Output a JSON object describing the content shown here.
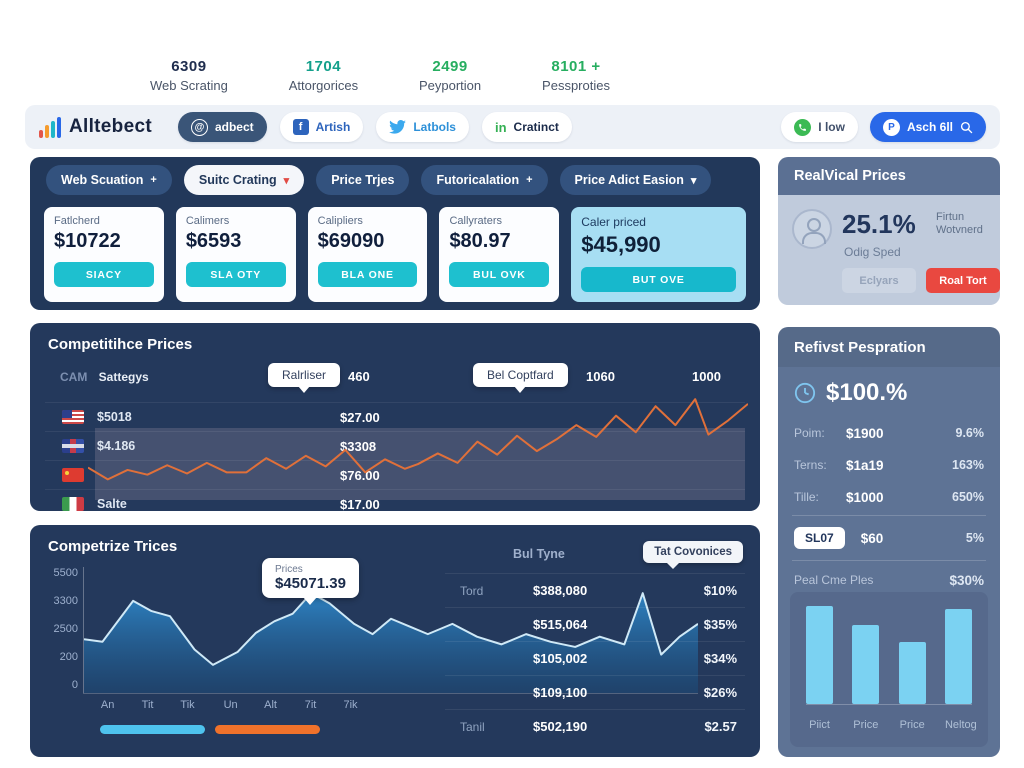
{
  "stats": [
    {
      "value": "6309",
      "label": "Web Scrating",
      "color": "#1f2d4e"
    },
    {
      "value": "1704",
      "label": "Attorgorices",
      "color": "#14a08b"
    },
    {
      "value": "2499",
      "label": "Peyportion",
      "color": "#27ae60"
    },
    {
      "value": "8101 +",
      "label": "Pessproties",
      "color": "#27ae60"
    }
  ],
  "header": {
    "brand": "Alltebect",
    "social": [
      {
        "label": "adbect",
        "icon": "at-circle"
      },
      {
        "label": "Artish",
        "icon": "facebook"
      },
      {
        "label": "Latbols",
        "icon": "twitter"
      },
      {
        "label": "Cratinct",
        "icon": "linkedin"
      }
    ],
    "actions": [
      {
        "label": "I low",
        "icon": "phone"
      },
      {
        "label": "Asch 6ll",
        "icon": "p-circle"
      }
    ]
  },
  "nav": [
    {
      "label": "Web Scuation",
      "caret": "+"
    },
    {
      "label": "Suitc Crating",
      "caret": "▾"
    },
    {
      "label": "Price Trjes",
      "caret": ""
    },
    {
      "label": "Futoricalation",
      "caret": "+"
    },
    {
      "label": "Price Adict Easion",
      "caret": "▾"
    }
  ],
  "cards": [
    {
      "label": "Fatlcherd",
      "price": "$10722",
      "button": "SIACY"
    },
    {
      "label": "Calimers",
      "price": "$6593",
      "button": "SLA OTY"
    },
    {
      "label": "Calipliers",
      "price": "$69090",
      "button": "BLA ONE"
    },
    {
      "label": "Callyraters",
      "price": "$80.97",
      "button": "BUL OVK"
    },
    {
      "label": "Caler priced",
      "price": "$45,990",
      "button": "BUT OVE"
    }
  ],
  "line_panel": {
    "title": "Competitihce Prices",
    "tag1": "CAM",
    "tag2": "Sattegys",
    "tooltip1": "Ralrliser",
    "tooltip2": "Bel Coptfard",
    "label1": "460",
    "label2": "1060",
    "label3": "1000",
    "rows": [
      {
        "flag": "us",
        "label": "$5018",
        "price": "$27.00"
      },
      {
        "flag": "uk",
        "label": "$4.186",
        "price": "$3308"
      },
      {
        "flag": "cn",
        "label": "",
        "price": "$76.00"
      },
      {
        "flag": "it",
        "label": "Salte",
        "price": "$17.00"
      }
    ]
  },
  "area_panel": {
    "title": "Competrize Trices",
    "tooltip_label": "Prices",
    "tooltip_value": "$45071.39",
    "table_header": "Bul Tyne",
    "table_chip": "Tat Covonices",
    "table_rows": [
      {
        "label": "Tord",
        "value": "$388,080",
        "pct": "$10%"
      },
      {
        "label": "",
        "value": "$515,064",
        "pct": "$35%"
      },
      {
        "label": "",
        "value": "$105,002",
        "pct": "$34%"
      },
      {
        "label": "",
        "value": "$109,100",
        "pct": "$26%"
      },
      {
        "label": "Tanil",
        "value": "$502,190",
        "pct": "$2.57"
      }
    ]
  },
  "sidebar": {
    "panel1": {
      "title": "RealVical Prices",
      "percent": "25.1%",
      "note1": "Firtun",
      "note2": "Wotvnerd",
      "sub": "Odig Sped",
      "btn_secondary": "Eclyars",
      "btn_primary": "Roal Tort"
    },
    "panel2": {
      "title": "Refivst Pespration",
      "big": "$100.%",
      "rows": [
        {
          "label": "Poim:",
          "value": "$1900",
          "pct": "9.6%"
        },
        {
          "label": "Terns:",
          "value": "$1a19",
          "pct": "163%"
        },
        {
          "label": "Tille:",
          "value": "$1000",
          "pct": "650%"
        }
      ],
      "chip": "SL07",
      "chip_value": "$60",
      "chip_pct": "5%",
      "summary_label": "Peal Cme Ples",
      "summary_value": "$30%"
    }
  },
  "colors": {
    "accent_teal": "#1ec0cf",
    "accent_orange": "#f0722b",
    "accent_cyan": "#4ec3ee",
    "accent_red": "#e94840",
    "panel_navy": "#24395c",
    "bar_blue": "#7bd2f2",
    "action_blue": "#2968e8"
  },
  "chart_data": [
    {
      "type": "line",
      "title": "Competitihce Prices",
      "color": "#e0703a",
      "ylim": [
        0,
        100
      ],
      "top_labels": [
        "460",
        "1060",
        "1000"
      ],
      "points": [
        [
          0,
          30
        ],
        [
          3,
          20
        ],
        [
          6,
          28
        ],
        [
          9,
          24
        ],
        [
          12,
          32
        ],
        [
          15,
          25
        ],
        [
          18,
          34
        ],
        [
          21,
          26
        ],
        [
          24,
          26
        ],
        [
          27,
          38
        ],
        [
          30,
          29
        ],
        [
          33,
          40
        ],
        [
          36,
          31
        ],
        [
          39,
          45
        ],
        [
          42,
          26
        ],
        [
          45,
          37
        ],
        [
          48,
          29
        ],
        [
          50,
          33
        ],
        [
          53,
          42
        ],
        [
          56,
          34
        ],
        [
          59,
          52
        ],
        [
          62,
          41
        ],
        [
          65,
          57
        ],
        [
          68,
          44
        ],
        [
          71,
          54
        ],
        [
          74,
          66
        ],
        [
          77,
          56
        ],
        [
          80,
          74
        ],
        [
          83,
          60
        ],
        [
          86,
          82
        ],
        [
          89,
          66
        ],
        [
          92,
          88
        ],
        [
          94,
          58
        ],
        [
          97,
          70
        ],
        [
          100,
          84
        ]
      ]
    },
    {
      "type": "area",
      "title": "Competrize Trices",
      "y_ticks": [
        "5500",
        "3300",
        "2500",
        "200",
        "0"
      ],
      "x_ticks": [
        "An",
        "Tit",
        "Tik",
        "Un",
        "Alt",
        "7it",
        "7ik"
      ],
      "x_tick_pos": [
        4,
        10.5,
        17,
        24,
        30.5,
        37,
        43.5
      ],
      "line_color": "#cfe9f7",
      "fill_color": "#2e86c8",
      "tooltip": {
        "label": "Prices",
        "value": "$45071.39"
      },
      "points": [
        [
          0,
          42
        ],
        [
          3,
          40
        ],
        [
          8,
          72
        ],
        [
          11,
          64
        ],
        [
          14,
          60
        ],
        [
          18,
          34
        ],
        [
          21,
          22
        ],
        [
          25,
          32
        ],
        [
          28,
          47
        ],
        [
          31,
          56
        ],
        [
          34,
          62
        ],
        [
          37,
          78
        ],
        [
          40,
          70
        ],
        [
          44,
          54
        ],
        [
          47,
          46
        ],
        [
          50,
          58
        ],
        [
          53,
          52
        ],
        [
          56,
          46
        ],
        [
          60,
          54
        ],
        [
          64,
          44
        ],
        [
          68,
          38
        ],
        [
          72,
          46
        ],
        [
          76,
          40
        ],
        [
          80,
          36
        ],
        [
          84,
          44
        ],
        [
          88,
          38
        ],
        [
          91,
          78
        ],
        [
          94,
          30
        ],
        [
          97,
          44
        ],
        [
          100,
          54
        ]
      ]
    },
    {
      "type": "bar",
      "categories": [
        "Piict",
        "Price",
        "Price",
        "Neltog"
      ],
      "values": [
        100,
        81,
        63,
        97
      ],
      "bar_color": "#7bd2f2"
    }
  ]
}
